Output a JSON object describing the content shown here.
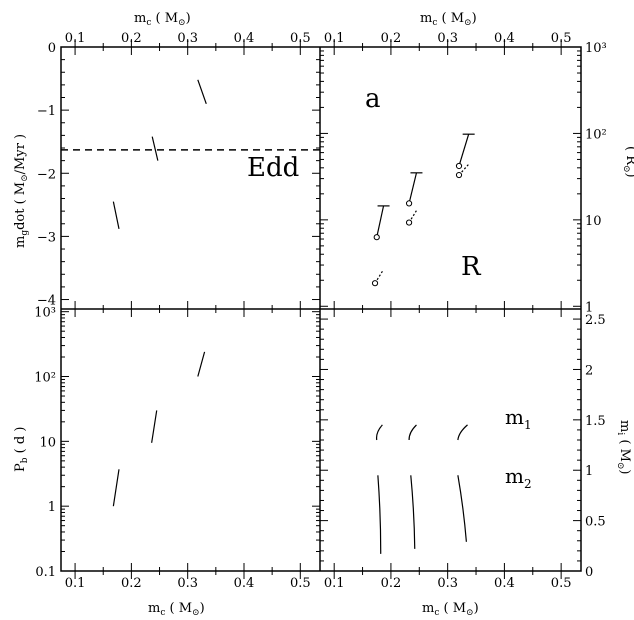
{
  "chart_data": {
    "type": "line",
    "labels": {
      "mc": "m",
      "mc_sub": "c",
      "mc_unit_open": "( M",
      "mc_unit_close": ")",
      "mgdot": "m",
      "mgdot_sub": "g",
      "mgdot_rest": "dot ( M",
      "mgdot_unit_close": "/Myr )",
      "pb": "P",
      "pb_sub": "b",
      "pb_rest": "( d )",
      "ri": "( R",
      "ri_close": ")",
      "mi": "m",
      "mi_sub": "i",
      "mi_rest": "( M",
      "mi_close": ")",
      "edd": "Edd",
      "a": "a",
      "R": "R",
      "m1": "m",
      "m1_sub": "1",
      "m2": "m",
      "m2_sub": "2"
    },
    "xlim": [
      0.075,
      0.535
    ],
    "xticks": [
      "0.1",
      "0.2",
      "0.3",
      "0.4",
      "0.5"
    ],
    "panels": {
      "top_left": {
        "ylabel": "mg dot (M_sun/Myr)",
        "ylim": [
          -4.15,
          0
        ],
        "yticks": [
          "0",
          "−1",
          "−2",
          "−3",
          "−4"
        ],
        "edd_level": -1.63,
        "tracks": [
          {
            "x": [
              0.168,
              0.178
            ],
            "y": [
              -2.45,
              -2.88
            ]
          },
          {
            "x": [
              0.237,
              0.247
            ],
            "y": [
              -1.42,
              -1.8
            ]
          },
          {
            "x": [
              0.318,
              0.333
            ],
            "y": [
              -0.52,
              -0.9
            ]
          }
        ]
      },
      "top_right": {
        "ylabel": "R_sun",
        "ylim_log": [
          0.93,
          1000
        ],
        "yticks": [
          "1",
          "10",
          "10²",
          "10³"
        ],
        "a_tracks": [
          {
            "x": [
              0.175,
              0.187
            ],
            "y": [
              6.3,
              14.5
            ]
          },
          {
            "x": [
              0.232,
              0.245
            ],
            "y": [
              15.5,
              35
            ]
          },
          {
            "x": [
              0.32,
              0.337
            ],
            "y": [
              42,
              98
            ]
          }
        ],
        "r_tracks": [
          {
            "x": [
              0.172,
              0.186
            ],
            "y": [
              1.85,
              2.6
            ]
          },
          {
            "x": [
              0.232,
              0.245
            ],
            "y": [
              9.3,
              12.8
            ]
          },
          {
            "x": [
              0.32,
              0.337
            ],
            "y": [
              33,
              44
            ]
          }
        ]
      },
      "bottom_left": {
        "ylabel": "Pb (d)",
        "ylim_log": [
          0.1,
          1100
        ],
        "yticks": [
          "0.1",
          "1",
          "10",
          "10²",
          "10³"
        ],
        "tracks": [
          {
            "x": [
              0.168,
              0.178
            ],
            "y": [
              1.0,
              3.7
            ]
          },
          {
            "x": [
              0.236,
              0.245
            ],
            "y": [
              9.5,
              30
            ]
          },
          {
            "x": [
              0.318,
              0.33
            ],
            "y": [
              100,
              240
            ]
          }
        ]
      },
      "bottom_right": {
        "ylabel": "m_i (M_sun)",
        "ylim": [
          0,
          2.6
        ],
        "yticks": [
          "0",
          "0.5",
          "1",
          "1.5",
          "2",
          "2.5"
        ],
        "m1_tracks": [
          {
            "x": [
              0.175,
              0.185
            ],
            "y": [
              1.3,
              1.45
            ]
          },
          {
            "x": [
              0.232,
              0.245
            ],
            "y": [
              1.3,
              1.45
            ]
          },
          {
            "x": [
              0.318,
              0.335
            ],
            "y": [
              1.3,
              1.45
            ]
          }
        ],
        "m2_tracks": [
          {
            "x": [
              0.177,
              0.182
            ],
            "y": [
              0.95,
              0.17
            ]
          },
          {
            "x": [
              0.235,
              0.242
            ],
            "y": [
              0.95,
              0.22
            ]
          },
          {
            "x": [
              0.318,
              0.333
            ],
            "y": [
              0.95,
              0.29
            ]
          }
        ]
      }
    }
  }
}
